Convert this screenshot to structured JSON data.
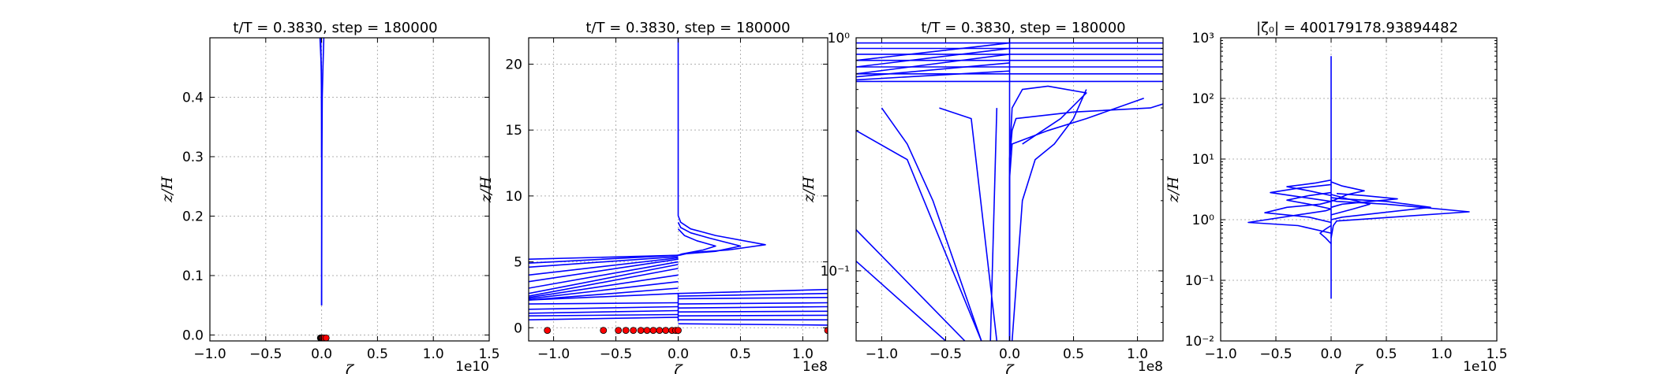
{
  "figure": {
    "colors": {
      "line": "#0000ff",
      "marker": "#ff0000",
      "grid": "#b0b0b0"
    }
  },
  "chart_data": [
    {
      "type": "line",
      "title": "t/T = 0.3830, step = 180000",
      "xlabel": "ζ",
      "ylabel": "z/H",
      "x_offset_label": "1e10",
      "xlim": [
        -1.0,
        1.5
      ],
      "ylim": [
        -0.01,
        0.5
      ],
      "x_scale": "linear",
      "y_scale": "linear",
      "grid": true,
      "xticks": [
        -1.0,
        -0.5,
        0.0,
        0.5,
        1.0,
        1.5
      ],
      "xticklabels": [
        "−1.0",
        "−0.5",
        "0.0",
        "0.5",
        "1.0",
        "1.5"
      ],
      "yticks": [
        0.0,
        0.1,
        0.2,
        0.3,
        0.4
      ],
      "yticklabels": [
        "0.0",
        "0.1",
        "0.2",
        "0.3",
        "0.4"
      ],
      "series": [
        {
          "x": [
            0.0,
            0.0,
            0.002,
            -0.003,
            -0.01,
            -0.015
          ],
          "y": [
            0.05,
            0.3,
            0.4,
            0.45,
            0.48,
            0.5
          ]
        },
        {
          "x": [
            0.0,
            0.003,
            0.006,
            0.012,
            0.02
          ],
          "y": [
            0.05,
            0.3,
            0.4,
            0.45,
            0.5
          ]
        },
        {
          "x": [
            0.0,
            -0.002,
            -0.005,
            -0.008
          ],
          "y": [
            0.3,
            0.42,
            0.47,
            0.5
          ]
        }
      ],
      "markers": {
        "x": [
          -0.01,
          -0.006,
          -0.003,
          0.0,
          0.003,
          0.006,
          0.01,
          0.02,
          0.04
        ],
        "y": [
          -0.005,
          -0.005,
          -0.005,
          -0.005,
          -0.005,
          -0.005,
          -0.005,
          -0.005,
          -0.005
        ]
      }
    },
    {
      "type": "line",
      "title": "t/T = 0.3830, step = 180000",
      "xlabel": "ζ",
      "ylabel": "z/H",
      "x_offset_label": "1e8",
      "xlim": [
        -1.2,
        1.2
      ],
      "ylim": [
        -1.0,
        22.0
      ],
      "x_scale": "linear",
      "y_scale": "linear",
      "grid": true,
      "xticks": [
        -1.0,
        -0.5,
        0.0,
        0.5,
        1.0
      ],
      "xticklabels": [
        "−1.0",
        "−0.5",
        "0.0",
        "0.5",
        "1.0"
      ],
      "yticks": [
        0,
        5,
        10,
        15,
        20
      ],
      "yticklabels": [
        "0",
        "5",
        "10",
        "15",
        "20"
      ],
      "series": [
        {
          "x": [
            0.0,
            0.0,
            0.02,
            0.1,
            0.3,
            0.7,
            0.4,
            0.1,
            0.01
          ],
          "y": [
            22,
            8.5,
            8.0,
            7.5,
            7.0,
            6.3,
            5.9,
            5.7,
            5.5
          ]
        },
        {
          "x": [
            0.0,
            0.02,
            0.1,
            0.25,
            0.5,
            0.3,
            0.05,
            0.0
          ],
          "y": [
            8.0,
            7.6,
            7.2,
            6.8,
            6.2,
            5.8,
            5.6,
            5.5
          ]
        },
        {
          "x": [
            0.0,
            0.05,
            0.15,
            0.3,
            0.2,
            0.03,
            0.0
          ],
          "y": [
            7.5,
            7.0,
            6.6,
            6.2,
            5.9,
            5.6,
            5.5
          ]
        },
        {
          "x": [
            0.0,
            -1.2
          ],
          "y": [
            5.5,
            5.2
          ]
        },
        {
          "x": [
            0.0,
            -1.2
          ],
          "y": [
            5.5,
            4.9
          ]
        },
        {
          "x": [
            0.0,
            -1.2
          ],
          "y": [
            5.4,
            4.6
          ]
        },
        {
          "x": [
            0.0,
            -1.2
          ],
          "y": [
            5.3,
            4.0
          ]
        },
        {
          "x": [
            0.0,
            -1.2
          ],
          "y": [
            5.2,
            3.5
          ]
        },
        {
          "x": [
            0.0,
            -1.2
          ],
          "y": [
            5.0,
            3.0
          ]
        },
        {
          "x": [
            0.0,
            -1.2
          ],
          "y": [
            4.8,
            2.6
          ]
        },
        {
          "x": [
            0.0,
            -1.2
          ],
          "y": [
            4.5,
            2.4
          ]
        },
        {
          "x": [
            0.0,
            -1.2
          ],
          "y": [
            4.0,
            2.3
          ]
        },
        {
          "x": [
            0.0,
            -1.2
          ],
          "y": [
            3.5,
            2.2
          ]
        },
        {
          "x": [
            0.0,
            -1.2
          ],
          "y": [
            3.0,
            2.1
          ]
        },
        {
          "x": [
            0.0,
            -1.2
          ],
          "y": [
            2.6,
            2.1
          ]
        },
        {
          "x": [
            0.0,
            1.2
          ],
          "y": [
            2.6,
            2.9
          ]
        },
        {
          "x": [
            0.0,
            1.2
          ],
          "y": [
            2.4,
            2.6
          ]
        },
        {
          "x": [
            0.0,
            1.2
          ],
          "y": [
            2.2,
            2.3
          ]
        },
        {
          "x": [
            0.0,
            -1.2
          ],
          "y": [
            1.9,
            1.8
          ]
        },
        {
          "x": [
            0.0,
            -1.2
          ],
          "y": [
            1.6,
            1.4
          ]
        },
        {
          "x": [
            0.0,
            -1.2
          ],
          "y": [
            1.3,
            1.1
          ]
        },
        {
          "x": [
            0.0,
            -1.2
          ],
          "y": [
            1.0,
            0.9
          ]
        },
        {
          "x": [
            0.0,
            -1.2
          ],
          "y": [
            0.8,
            0.6
          ]
        },
        {
          "x": [
            0.0,
            1.2
          ],
          "y": [
            1.8,
            1.9
          ]
        },
        {
          "x": [
            0.0,
            1.2
          ],
          "y": [
            1.5,
            1.6
          ]
        },
        {
          "x": [
            0.0,
            1.2
          ],
          "y": [
            1.2,
            1.25
          ]
        },
        {
          "x": [
            0.0,
            1.2
          ],
          "y": [
            0.9,
            0.95
          ]
        },
        {
          "x": [
            0.0,
            1.2
          ],
          "y": [
            0.6,
            0.6
          ]
        },
        {
          "x": [
            0.0,
            1.2
          ],
          "y": [
            0.3,
            0.2
          ]
        },
        {
          "x": [
            0.0,
            0.0
          ],
          "y": [
            0.5,
            2.6
          ]
        }
      ],
      "markers": {
        "x": [
          -1.05,
          -0.6,
          -0.48,
          -0.42,
          -0.36,
          -0.3,
          -0.25,
          -0.2,
          -0.15,
          -0.1,
          -0.05,
          -0.02,
          0.0,
          1.2
        ],
        "y": [
          -0.2,
          -0.2,
          -0.2,
          -0.2,
          -0.2,
          -0.2,
          -0.2,
          -0.2,
          -0.2,
          -0.2,
          -0.2,
          -0.2,
          -0.2,
          -0.2
        ]
      }
    },
    {
      "type": "line",
      "title": "t/T = 0.3830, step = 180000",
      "xlabel": "ζ",
      "ylabel": "z/H",
      "x_offset_label": "1e8",
      "xlim": [
        -1.2,
        1.2
      ],
      "ylim": [
        0.05,
        1.0
      ],
      "x_scale": "linear",
      "y_scale": "log",
      "grid": true,
      "xticks": [
        -1.0,
        -0.5,
        0.0,
        0.5,
        1.0
      ],
      "xticklabels": [
        "−1.0",
        "−0.5",
        "0.0",
        "0.5",
        "1.0"
      ],
      "yticks": [
        0.1,
        1.0
      ],
      "yticklabels": [
        "10⁻¹",
        "10⁰"
      ],
      "series": [
        {
          "x": [
            -0.15,
            -0.1
          ],
          "y": [
            0.05,
            0.5
          ]
        },
        {
          "x": [
            -0.1,
            -0.3,
            -0.55
          ],
          "y": [
            0.05,
            0.45,
            0.5
          ]
        },
        {
          "x": [
            -0.22,
            -0.8,
            -1.2
          ],
          "y": [
            0.05,
            0.3,
            0.4
          ]
        },
        {
          "x": [
            -0.35,
            -1.2
          ],
          "y": [
            0.05,
            0.15
          ]
        },
        {
          "x": [
            -0.5,
            -1.2
          ],
          "y": [
            0.05,
            0.11
          ]
        },
        {
          "x": [
            -0.22,
            -0.6,
            -0.8,
            -1.0
          ],
          "y": [
            0.05,
            0.2,
            0.35,
            0.5
          ]
        },
        {
          "x": [
            0.0,
            0.0,
            0.02,
            0.05,
            0.5,
            1.1,
            1.2
          ],
          "y": [
            0.05,
            0.3,
            0.4,
            0.45,
            0.48,
            0.5,
            0.52
          ]
        },
        {
          "x": [
            0.0,
            0.0,
            0.02,
            0.3,
            0.6,
            1.05
          ],
          "y": [
            0.05,
            0.25,
            0.35,
            0.4,
            0.45,
            0.55
          ]
        },
        {
          "x": [
            0.02,
            0.1,
            0.2,
            0.35,
            0.5,
            0.6
          ],
          "y": [
            0.05,
            0.2,
            0.3,
            0.35,
            0.45,
            0.6
          ]
        },
        {
          "x": [
            0.0,
            0.0
          ],
          "y": [
            0.05,
            1.0
          ]
        },
        {
          "x": [
            0.0,
            0.02,
            0.1,
            0.3,
            0.6,
            0.4,
            0.1
          ],
          "y": [
            0.3,
            0.5,
            0.6,
            0.62,
            0.58,
            0.45,
            0.35
          ]
        },
        {
          "x": [
            -1.2,
            1.2
          ],
          "y": [
            0.65,
            0.65
          ]
        },
        {
          "x": [
            -1.2,
            1.2
          ],
          "y": [
            0.7,
            0.7
          ]
        },
        {
          "x": [
            -1.2,
            1.2
          ],
          "y": [
            0.75,
            0.75
          ]
        },
        {
          "x": [
            -1.2,
            1.2
          ],
          "y": [
            0.8,
            0.8
          ]
        },
        {
          "x": [
            -1.2,
            1.2
          ],
          "y": [
            0.85,
            0.85
          ]
        },
        {
          "x": [
            -1.2,
            1.2
          ],
          "y": [
            0.9,
            0.9
          ]
        },
        {
          "x": [
            -1.2,
            1.2
          ],
          "y": [
            0.95,
            0.95
          ]
        },
        {
          "x": [
            -1.2,
            0.0
          ],
          "y": [
            0.8,
            0.95
          ]
        },
        {
          "x": [
            -1.2,
            0.0
          ],
          "y": [
            0.75,
            0.9
          ]
        },
        {
          "x": [
            -1.2,
            0.0
          ],
          "y": [
            0.7,
            0.85
          ]
        },
        {
          "x": [
            -1.2,
            0.0
          ],
          "y": [
            0.68,
            0.78
          ]
        },
        {
          "x": [
            -1.2,
            0.0
          ],
          "y": [
            0.66,
            0.72
          ]
        }
      ]
    },
    {
      "type": "line",
      "title": "|ζ₀| = 400179178.93894482",
      "xlabel": "ζ",
      "ylabel": "z/H",
      "x_offset_label": "1e10",
      "xlim": [
        -1.0,
        1.5
      ],
      "ylim": [
        0.01,
        1000
      ],
      "x_scale": "linear",
      "y_scale": "log",
      "grid": true,
      "xticks": [
        -1.0,
        -0.5,
        0.0,
        0.5,
        1.0,
        1.5
      ],
      "xticklabels": [
        "−1.0",
        "−0.5",
        "0.0",
        "0.5",
        "1.0",
        "1.5"
      ],
      "yticks": [
        0.01,
        0.1,
        1,
        10,
        100,
        1000
      ],
      "yticklabels": [
        "10⁻²",
        "10⁻¹",
        "10⁰",
        "10¹",
        "10²",
        "10³"
      ],
      "series": [
        {
          "x": [
            0.0,
            0.0
          ],
          "y": [
            0.05,
            500
          ]
        },
        {
          "x": [
            0.0,
            0.02,
            0.05,
            1.25,
            0.5,
            0.05,
            0.0
          ],
          "y": [
            0.5,
            0.8,
            0.95,
            1.35,
            1.8,
            2.0,
            2.1
          ]
        },
        {
          "x": [
            0.0,
            0.1,
            0.9,
            0.5,
            0.1,
            0.0
          ],
          "y": [
            1.0,
            1.1,
            1.6,
            2.0,
            2.2,
            2.3
          ]
        },
        {
          "x": [
            0.0,
            0.1,
            0.6,
            0.3,
            0.05
          ],
          "y": [
            1.6,
            1.8,
            2.2,
            2.5,
            2.7
          ]
        },
        {
          "x": [
            0.0,
            -0.3,
            -0.75,
            -0.3,
            -0.05,
            0.0
          ],
          "y": [
            0.6,
            0.8,
            0.9,
            1.2,
            1.4,
            1.5
          ]
        },
        {
          "x": [
            0.0,
            -0.2,
            -0.6,
            -0.4,
            -0.1,
            0.0
          ],
          "y": [
            0.9,
            1.1,
            1.3,
            1.6,
            1.8,
            2.0
          ]
        },
        {
          "x": [
            0.0,
            -0.2,
            -0.4,
            -0.2,
            0.0
          ],
          "y": [
            1.5,
            1.8,
            2.1,
            2.5,
            2.8
          ]
        },
        {
          "x": [
            0.0,
            -0.3,
            -0.55,
            -0.3,
            0.0
          ],
          "y": [
            2.0,
            2.4,
            2.8,
            3.3,
            3.8
          ]
        },
        {
          "x": [
            0.0,
            -0.2,
            -0.4,
            -0.15,
            0.0
          ],
          "y": [
            2.5,
            3.0,
            3.5,
            4.0,
            4.5
          ]
        },
        {
          "x": [
            0.0,
            0.2,
            0.35,
            0.15,
            0.0
          ],
          "y": [
            1.2,
            1.5,
            1.8,
            2.2,
            2.6
          ]
        },
        {
          "x": [
            0.0,
            0.15,
            0.3,
            0.1,
            0.0
          ],
          "y": [
            2.0,
            2.6,
            3.0,
            3.6,
            4.2
          ]
        },
        {
          "x": [
            0.0,
            -0.05,
            -0.1,
            -0.05,
            0.0
          ],
          "y": [
            0.4,
            0.5,
            0.6,
            0.7,
            0.8
          ]
        }
      ]
    }
  ]
}
